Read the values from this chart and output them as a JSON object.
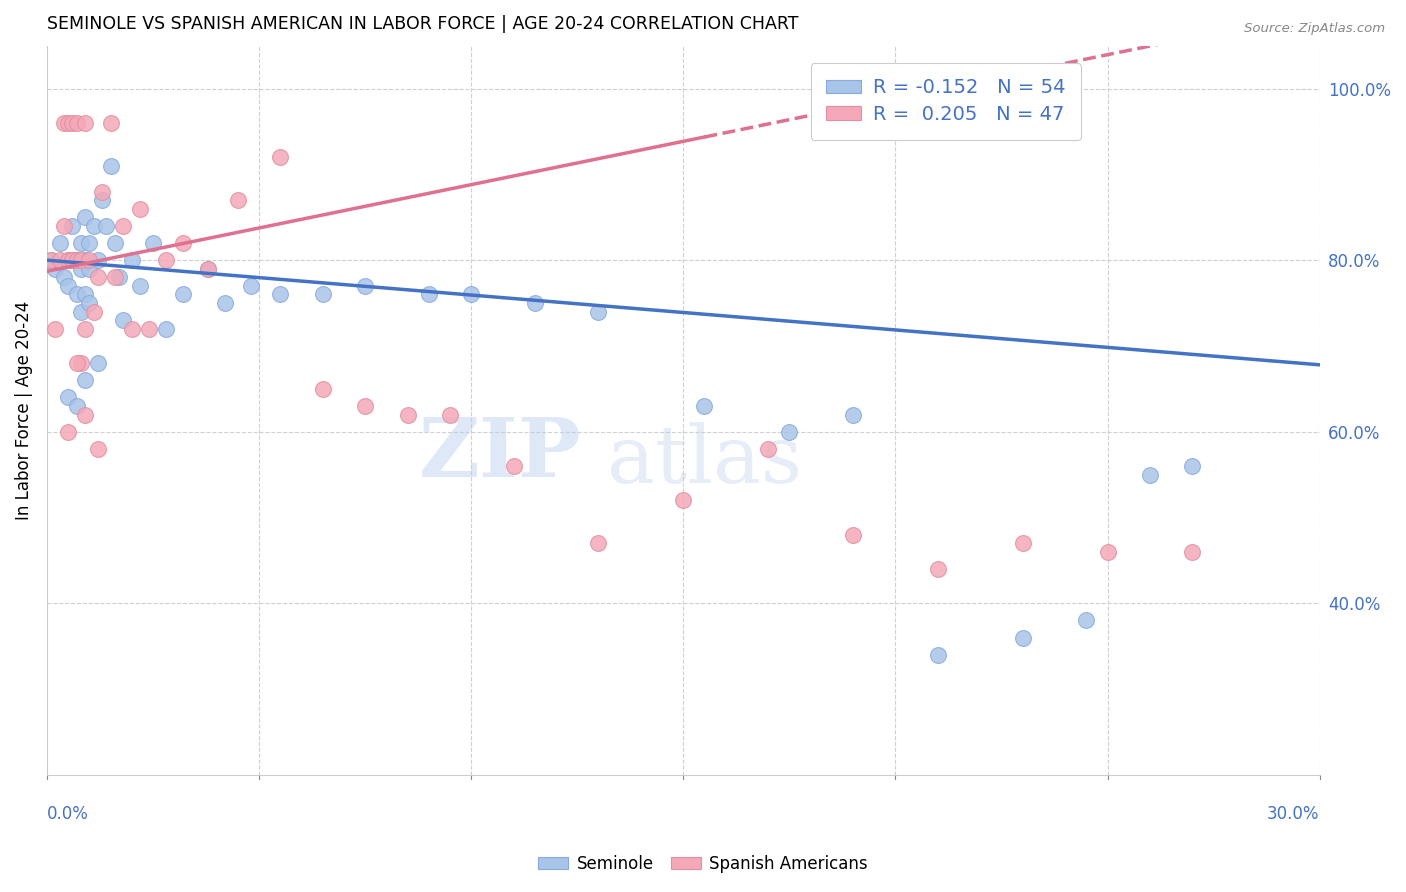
{
  "title": "SEMINOLE VS SPANISH AMERICAN IN LABOR FORCE | AGE 20-24 CORRELATION CHART",
  "source": "Source: ZipAtlas.com",
  "ylabel": "In Labor Force | Age 20-24",
  "seminole_color": "#a8c4e8",
  "spanish_color": "#f4a8b8",
  "trend_seminole_color": "#4472c4",
  "trend_spanish_color": "#e07090",
  "watermark_zip": "ZIP",
  "watermark_atlas": "atlas",
  "xmin": 0.0,
  "xmax": 0.3,
  "ymin": 0.2,
  "ymax": 1.05,
  "legend_r_seminole": "R = -0.152",
  "legend_n_seminole": "N = 54",
  "legend_r_spanish": "R =  0.205",
  "legend_n_spanish": "N = 47",
  "seminole_x": [
    0.001,
    0.002,
    0.003,
    0.004,
    0.005,
    0.005,
    0.006,
    0.006,
    0.007,
    0.007,
    0.008,
    0.008,
    0.008,
    0.009,
    0.009,
    0.009,
    0.01,
    0.01,
    0.01,
    0.011,
    0.012,
    0.013,
    0.014,
    0.015,
    0.016,
    0.017,
    0.018,
    0.02,
    0.022,
    0.025,
    0.028,
    0.032,
    0.038,
    0.042,
    0.048,
    0.055,
    0.065,
    0.075,
    0.09,
    0.1,
    0.115,
    0.13,
    0.155,
    0.175,
    0.19,
    0.21,
    0.23,
    0.245,
    0.26,
    0.27,
    0.005,
    0.007,
    0.009,
    0.012
  ],
  "seminole_y": [
    0.8,
    0.79,
    0.82,
    0.78,
    0.8,
    0.77,
    0.8,
    0.84,
    0.8,
    0.76,
    0.82,
    0.79,
    0.74,
    0.85,
    0.8,
    0.76,
    0.82,
    0.79,
    0.75,
    0.84,
    0.8,
    0.87,
    0.84,
    0.91,
    0.82,
    0.78,
    0.73,
    0.8,
    0.77,
    0.82,
    0.72,
    0.76,
    0.79,
    0.75,
    0.77,
    0.76,
    0.76,
    0.77,
    0.76,
    0.76,
    0.75,
    0.74,
    0.63,
    0.6,
    0.62,
    0.34,
    0.36,
    0.38,
    0.55,
    0.56,
    0.64,
    0.63,
    0.66,
    0.68
  ],
  "spanish_x": [
    0.001,
    0.002,
    0.003,
    0.004,
    0.004,
    0.005,
    0.005,
    0.006,
    0.006,
    0.007,
    0.007,
    0.008,
    0.008,
    0.009,
    0.009,
    0.01,
    0.011,
    0.012,
    0.013,
    0.015,
    0.016,
    0.018,
    0.02,
    0.022,
    0.024,
    0.028,
    0.032,
    0.038,
    0.045,
    0.055,
    0.065,
    0.075,
    0.085,
    0.095,
    0.11,
    0.13,
    0.15,
    0.17,
    0.19,
    0.21,
    0.23,
    0.25,
    0.27,
    0.005,
    0.007,
    0.009,
    0.012
  ],
  "spanish_y": [
    0.8,
    0.72,
    0.8,
    0.84,
    0.96,
    0.8,
    0.96,
    0.8,
    0.96,
    0.8,
    0.96,
    0.8,
    0.68,
    0.72,
    0.96,
    0.8,
    0.74,
    0.78,
    0.88,
    0.96,
    0.78,
    0.84,
    0.72,
    0.86,
    0.72,
    0.8,
    0.82,
    0.79,
    0.87,
    0.92,
    0.65,
    0.63,
    0.62,
    0.62,
    0.56,
    0.47,
    0.52,
    0.58,
    0.48,
    0.44,
    0.47,
    0.46,
    0.46,
    0.6,
    0.68,
    0.62,
    0.58
  ]
}
